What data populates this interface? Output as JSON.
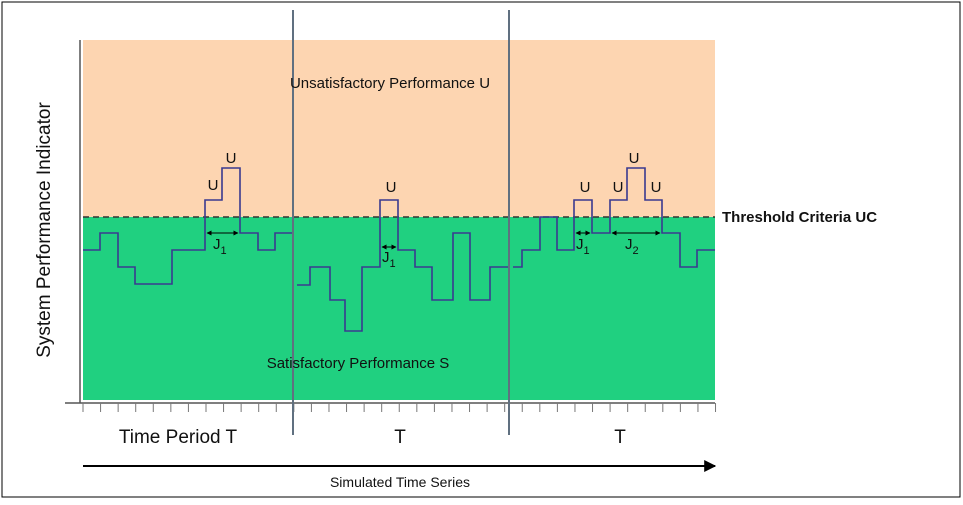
{
  "y_axis_label": "System Performance Indicator",
  "regions": {
    "unsatisfactory": "Unsatisfactory Performance U",
    "satisfactory": "Satisfactory Performance S"
  },
  "threshold": "Threshold Criteria UC",
  "u_labels": [
    "U",
    "U",
    "U",
    "U",
    "U",
    "U",
    "U"
  ],
  "j_labels": [
    {
      "label": "J",
      "sub": "1"
    },
    {
      "label": "J",
      "sub": "1"
    },
    {
      "label": "J",
      "sub": "1"
    },
    {
      "label": "J",
      "sub": "2"
    }
  ],
  "periods": [
    "Time Period T",
    "T",
    "T"
  ],
  "x_axis_label": "Simulated Time Series"
}
